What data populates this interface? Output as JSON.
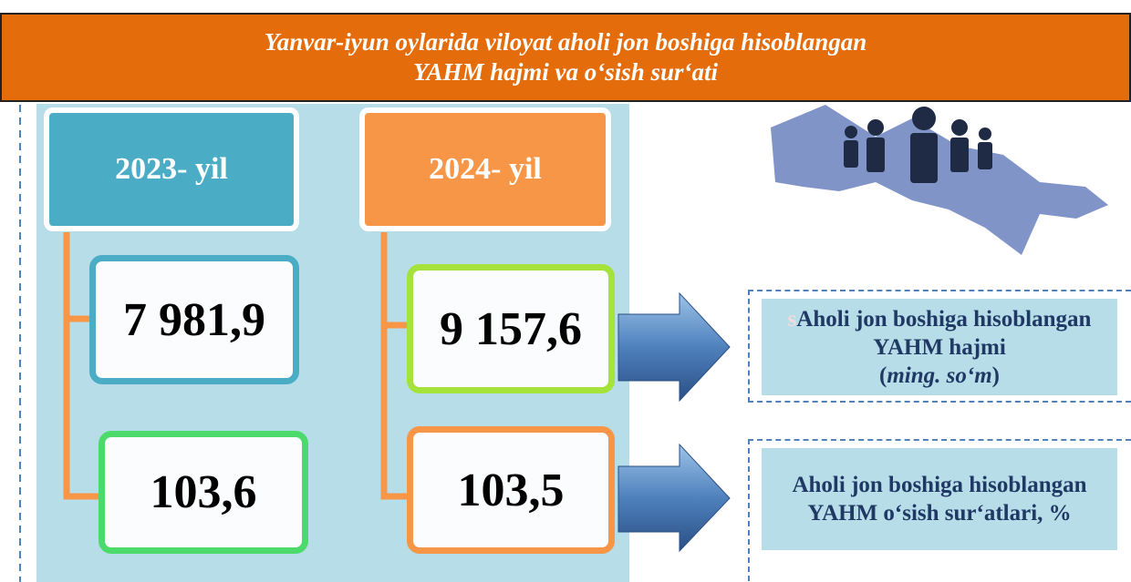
{
  "header": {
    "title_lines": [
      "Yanvar-iyun oylarida viloyat aholi jon boshiga hisoblangan",
      "YAHM hajmi va o‘sish sur‘ati"
    ]
  },
  "columns": [
    {
      "year": "2023- yil",
      "volume": "7 981,9",
      "growth": "103,6"
    },
    {
      "year": "2024- yil",
      "volume": "9 157,6",
      "growth": "103,5"
    }
  ],
  "labels": {
    "volume": {
      "prefix": "s",
      "text": "Aholi jon boshiga hisoblangan YAHM hajmi",
      "unit_open": "(",
      "unit": "ming. so‘m",
      "unit_close": ")"
    },
    "growth": {
      "text": "Aholi jon boshiga hisoblangan YAHM o‘sish sur‘atlari, %"
    }
  }
}
